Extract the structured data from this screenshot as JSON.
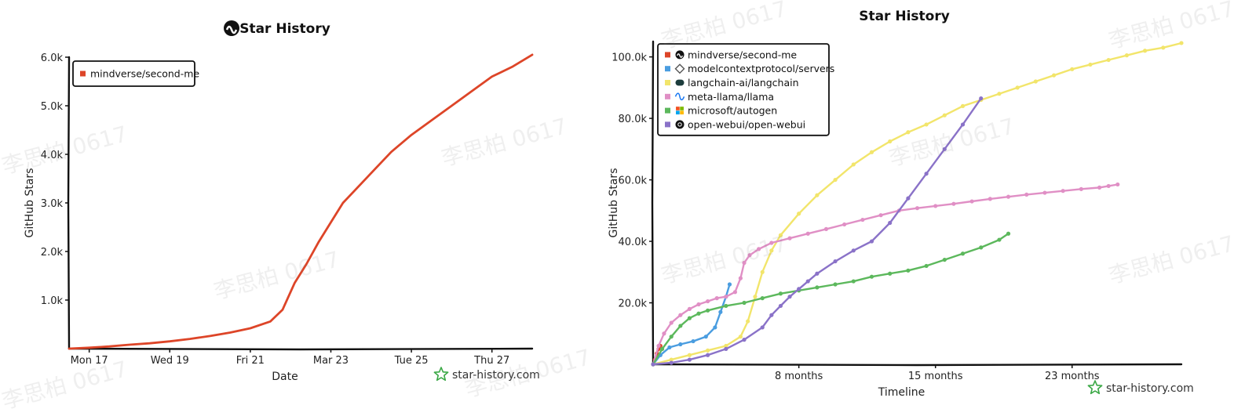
{
  "watermark_text": "李思柏 0617",
  "credit_text": "star-history.com",
  "chart_data": [
    {
      "type": "line",
      "title": "Star History",
      "xlabel": "Date",
      "ylabel": "GitHub Stars",
      "x_tick_labels": [
        "Mon 17",
        "Wed 19",
        "Fri 21",
        "Mar 23",
        "Tue 25",
        "Thu 27"
      ],
      "x_ticks": [
        0.5,
        2.5,
        4.5,
        6.5,
        8.5,
        10.5
      ],
      "xlim": [
        0,
        11.5
      ],
      "y_ticks": [
        1000,
        2000,
        3000,
        4000,
        5000,
        6000
      ],
      "y_tick_labels": [
        "1.0k",
        "2.0k",
        "3.0k",
        "4.0k",
        "5.0k",
        "6.0k"
      ],
      "ylim": [
        0,
        6000
      ],
      "legend_position": "top-left",
      "series": [
        {
          "name": "mindverse/second-me",
          "color": "#dd4528",
          "icon": "mindverse-logo-icon",
          "x": [
            0,
            0.5,
            1,
            1.5,
            2,
            2.5,
            3,
            3.5,
            4,
            4.5,
            5,
            5.3,
            5.6,
            5.9,
            6.2,
            6.5,
            6.8,
            7.2,
            7.6,
            8,
            8.5,
            9,
            9.5,
            10,
            10.5,
            11,
            11.5
          ],
          "values": [
            0,
            20,
            45,
            80,
            110,
            150,
            200,
            260,
            330,
            420,
            560,
            800,
            1350,
            1750,
            2200,
            2600,
            3000,
            3350,
            3700,
            4050,
            4400,
            4700,
            5000,
            5300,
            5600,
            5800,
            6050
          ]
        }
      ]
    },
    {
      "type": "line",
      "title": "Star History",
      "xlabel": "Timeline",
      "ylabel": "GitHub Stars",
      "x_tick_labels": [
        "8 months",
        "15 months",
        "23 months"
      ],
      "x_ticks": [
        8,
        15.5,
        23
      ],
      "xlim": [
        0,
        29
      ],
      "y_ticks": [
        20000,
        40000,
        60000,
        80000,
        100000
      ],
      "y_tick_labels": [
        "20.0k",
        "40.0k",
        "60.0k",
        "80.0k",
        "100.0k"
      ],
      "ylim": [
        0,
        105000
      ],
      "legend_position": "top-left",
      "series": [
        {
          "name": "mindverse/second-me",
          "color": "#dd4528",
          "icon": "mindverse-logo-icon",
          "x": [
            0,
            0.1,
            0.2,
            0.3,
            0.4
          ],
          "values": [
            0,
            1500,
            3500,
            5000,
            6000
          ]
        },
        {
          "name": "modelcontextprotocol/servers",
          "color": "#4a9de0",
          "icon": "mcp-logo-icon",
          "x": [
            0,
            0.4,
            0.9,
            1.5,
            2.2,
            2.9,
            3.4,
            3.7,
            4,
            4.2
          ],
          "values": [
            0,
            3000,
            5500,
            6500,
            7500,
            9000,
            12000,
            17000,
            22000,
            26000
          ]
        },
        {
          "name": "langchain-ai/langchain",
          "color": "#f2e56b",
          "icon": "langchain-logo-icon",
          "x": [
            0,
            1,
            2,
            3,
            4,
            4.8,
            5.2,
            5.6,
            6,
            6.5,
            7,
            8,
            9,
            10,
            11,
            12,
            13,
            14,
            15,
            16,
            17,
            18,
            19,
            20,
            21,
            22,
            23,
            24,
            25,
            26,
            27,
            28,
            29
          ],
          "values": [
            0,
            1500,
            3000,
            4500,
            6000,
            9000,
            14000,
            22000,
            30000,
            37000,
            42000,
            49000,
            55000,
            60000,
            65000,
            69000,
            72500,
            75500,
            78000,
            81000,
            84000,
            86000,
            88000,
            90000,
            92000,
            94000,
            96000,
            97500,
            99000,
            100500,
            102000,
            103000,
            104500
          ]
        },
        {
          "name": "meta-llama/llama",
          "color": "#e08fc5",
          "icon": "meta-logo-icon",
          "x": [
            0,
            0.3,
            0.6,
            1,
            1.5,
            2,
            2.5,
            3,
            3.5,
            4,
            4.5,
            4.8,
            5,
            5.3,
            5.8,
            6.5,
            7.5,
            8.5,
            9.5,
            10.5,
            11.5,
            12.5,
            13.5,
            14.5,
            15.5,
            16.5,
            17.5,
            18.5,
            19.5,
            20.5,
            21.5,
            22.5,
            23.5,
            24.5,
            25,
            25.5
          ],
          "values": [
            0,
            6000,
            10000,
            13500,
            16000,
            18000,
            19500,
            20500,
            21500,
            22000,
            23500,
            28000,
            33000,
            35500,
            37500,
            39500,
            41000,
            42500,
            44000,
            45500,
            47000,
            48500,
            50000,
            50800,
            51500,
            52200,
            53000,
            53800,
            54500,
            55200,
            55800,
            56400,
            57000,
            57500,
            58000,
            58500
          ]
        },
        {
          "name": "microsoft/autogen",
          "color": "#5cb85c",
          "icon": "microsoft-logo-icon",
          "x": [
            0,
            0.5,
            1,
            1.5,
            2,
            2.5,
            3,
            4,
            5,
            6,
            7,
            8,
            9,
            10,
            11,
            12,
            13,
            14,
            15,
            16,
            17,
            18,
            19,
            19.5
          ],
          "values": [
            0,
            5000,
            9000,
            12500,
            15000,
            16500,
            17500,
            19000,
            20000,
            21500,
            23000,
            24000,
            25000,
            26000,
            27000,
            28500,
            29500,
            30500,
            32000,
            34000,
            36000,
            38000,
            40500,
            42500
          ]
        },
        {
          "name": "open-webui/open-webui",
          "color": "#8a72c8",
          "icon": "openwebui-logo-icon",
          "x": [
            0,
            1,
            2,
            3,
            4,
            5,
            6,
            6.5,
            7,
            7.5,
            8,
            8.5,
            9,
            10,
            11,
            12,
            13,
            14,
            15,
            16,
            17,
            18
          ],
          "values": [
            0,
            500,
            1500,
            3000,
            5000,
            8000,
            12000,
            16000,
            19000,
            22000,
            24500,
            27000,
            29500,
            33500,
            37000,
            40000,
            46000,
            54000,
            62000,
            70000,
            78000,
            86500
          ]
        }
      ]
    }
  ]
}
